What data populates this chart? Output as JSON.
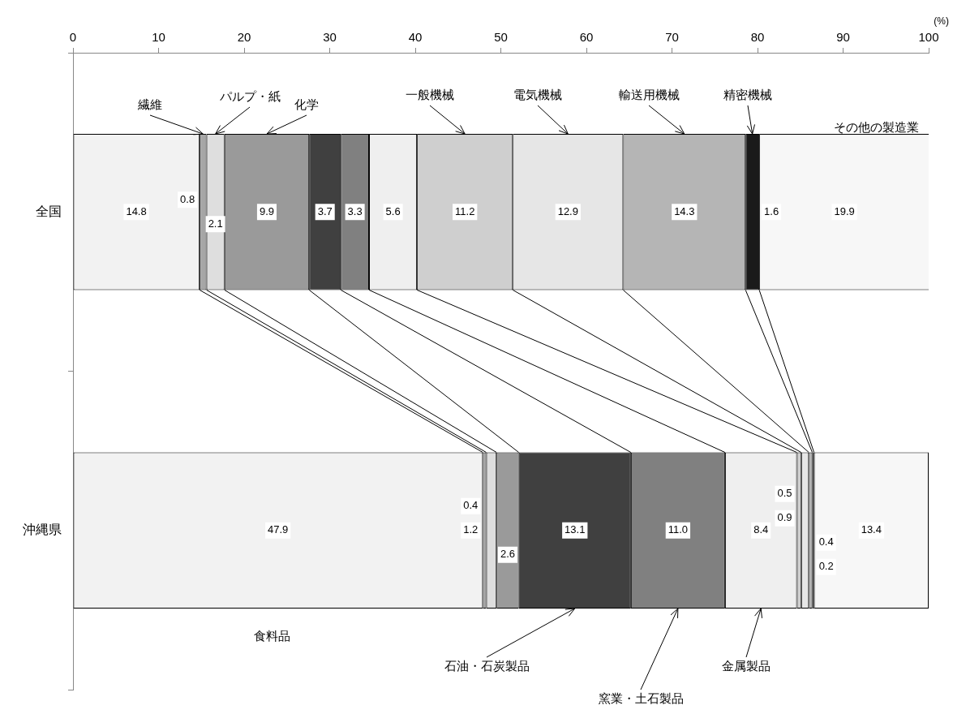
{
  "chart_data": {
    "type": "bar",
    "orientation": "horizontal",
    "stacked": true,
    "xlabel": "(%)",
    "categories": [
      "全国",
      "沖縄県"
    ],
    "xlim": [
      0,
      100
    ],
    "xticks": [
      0,
      10,
      20,
      30,
      40,
      50,
      60,
      70,
      80,
      90,
      100
    ],
    "grid": false,
    "legend": false,
    "series": [
      {
        "name": "食料品",
        "color": "#f2f2f2",
        "values": [
          14.8,
          47.9
        ],
        "value_labels": [
          "14.8",
          "47.9"
        ]
      },
      {
        "name": "繊維",
        "color": "#a6a6a6",
        "values": [
          0.8,
          0.4
        ],
        "value_labels": [
          "0.8",
          "0.4"
        ]
      },
      {
        "name": "パルプ・紙",
        "color": "#dedede",
        "values": [
          2.1,
          1.2
        ],
        "value_labels": [
          "2.1",
          "1.2"
        ]
      },
      {
        "name": "化学",
        "color": "#9a9a9a",
        "values": [
          9.9,
          2.6
        ],
        "value_labels": [
          "9.9",
          "2.6"
        ]
      },
      {
        "name": "石油・石炭製品",
        "color": "#404040",
        "values": [
          3.7,
          13.1
        ],
        "value_labels": [
          "3.7",
          "13.1"
        ]
      },
      {
        "name": "窯業・土石製品",
        "color": "#808080",
        "values": [
          3.3,
          11.0
        ],
        "value_labels": [
          "3.3",
          "11.0"
        ]
      },
      {
        "name": "金属製品",
        "color": "#efefef",
        "values": [
          5.6,
          8.4
        ],
        "value_labels": [
          "5.6",
          "8.4"
        ]
      },
      {
        "name": "一般機械",
        "color": "#cfcfcf",
        "values": [
          11.2,
          0.5
        ],
        "value_labels": [
          "11.2",
          "0.5"
        ]
      },
      {
        "name": "電気機械",
        "color": "#e6e6e6",
        "values": [
          12.9,
          0.9
        ],
        "value_labels": [
          "12.9",
          "0.9"
        ]
      },
      {
        "name": "輸送用機械",
        "color": "#b5b5b5",
        "values": [
          14.3,
          0.4
        ],
        "value_labels": [
          "14.3",
          "0.4"
        ]
      },
      {
        "name": "精密機械",
        "color": "#1a1a1a",
        "values": [
          1.6,
          0.2
        ],
        "value_labels": [
          "1.6",
          "0.2"
        ]
      },
      {
        "name": "その他の製造業",
        "color": "#f7f7f7",
        "values": [
          19.9,
          13.4
        ],
        "value_labels": [
          "19.9",
          "13.4"
        ]
      }
    ]
  }
}
